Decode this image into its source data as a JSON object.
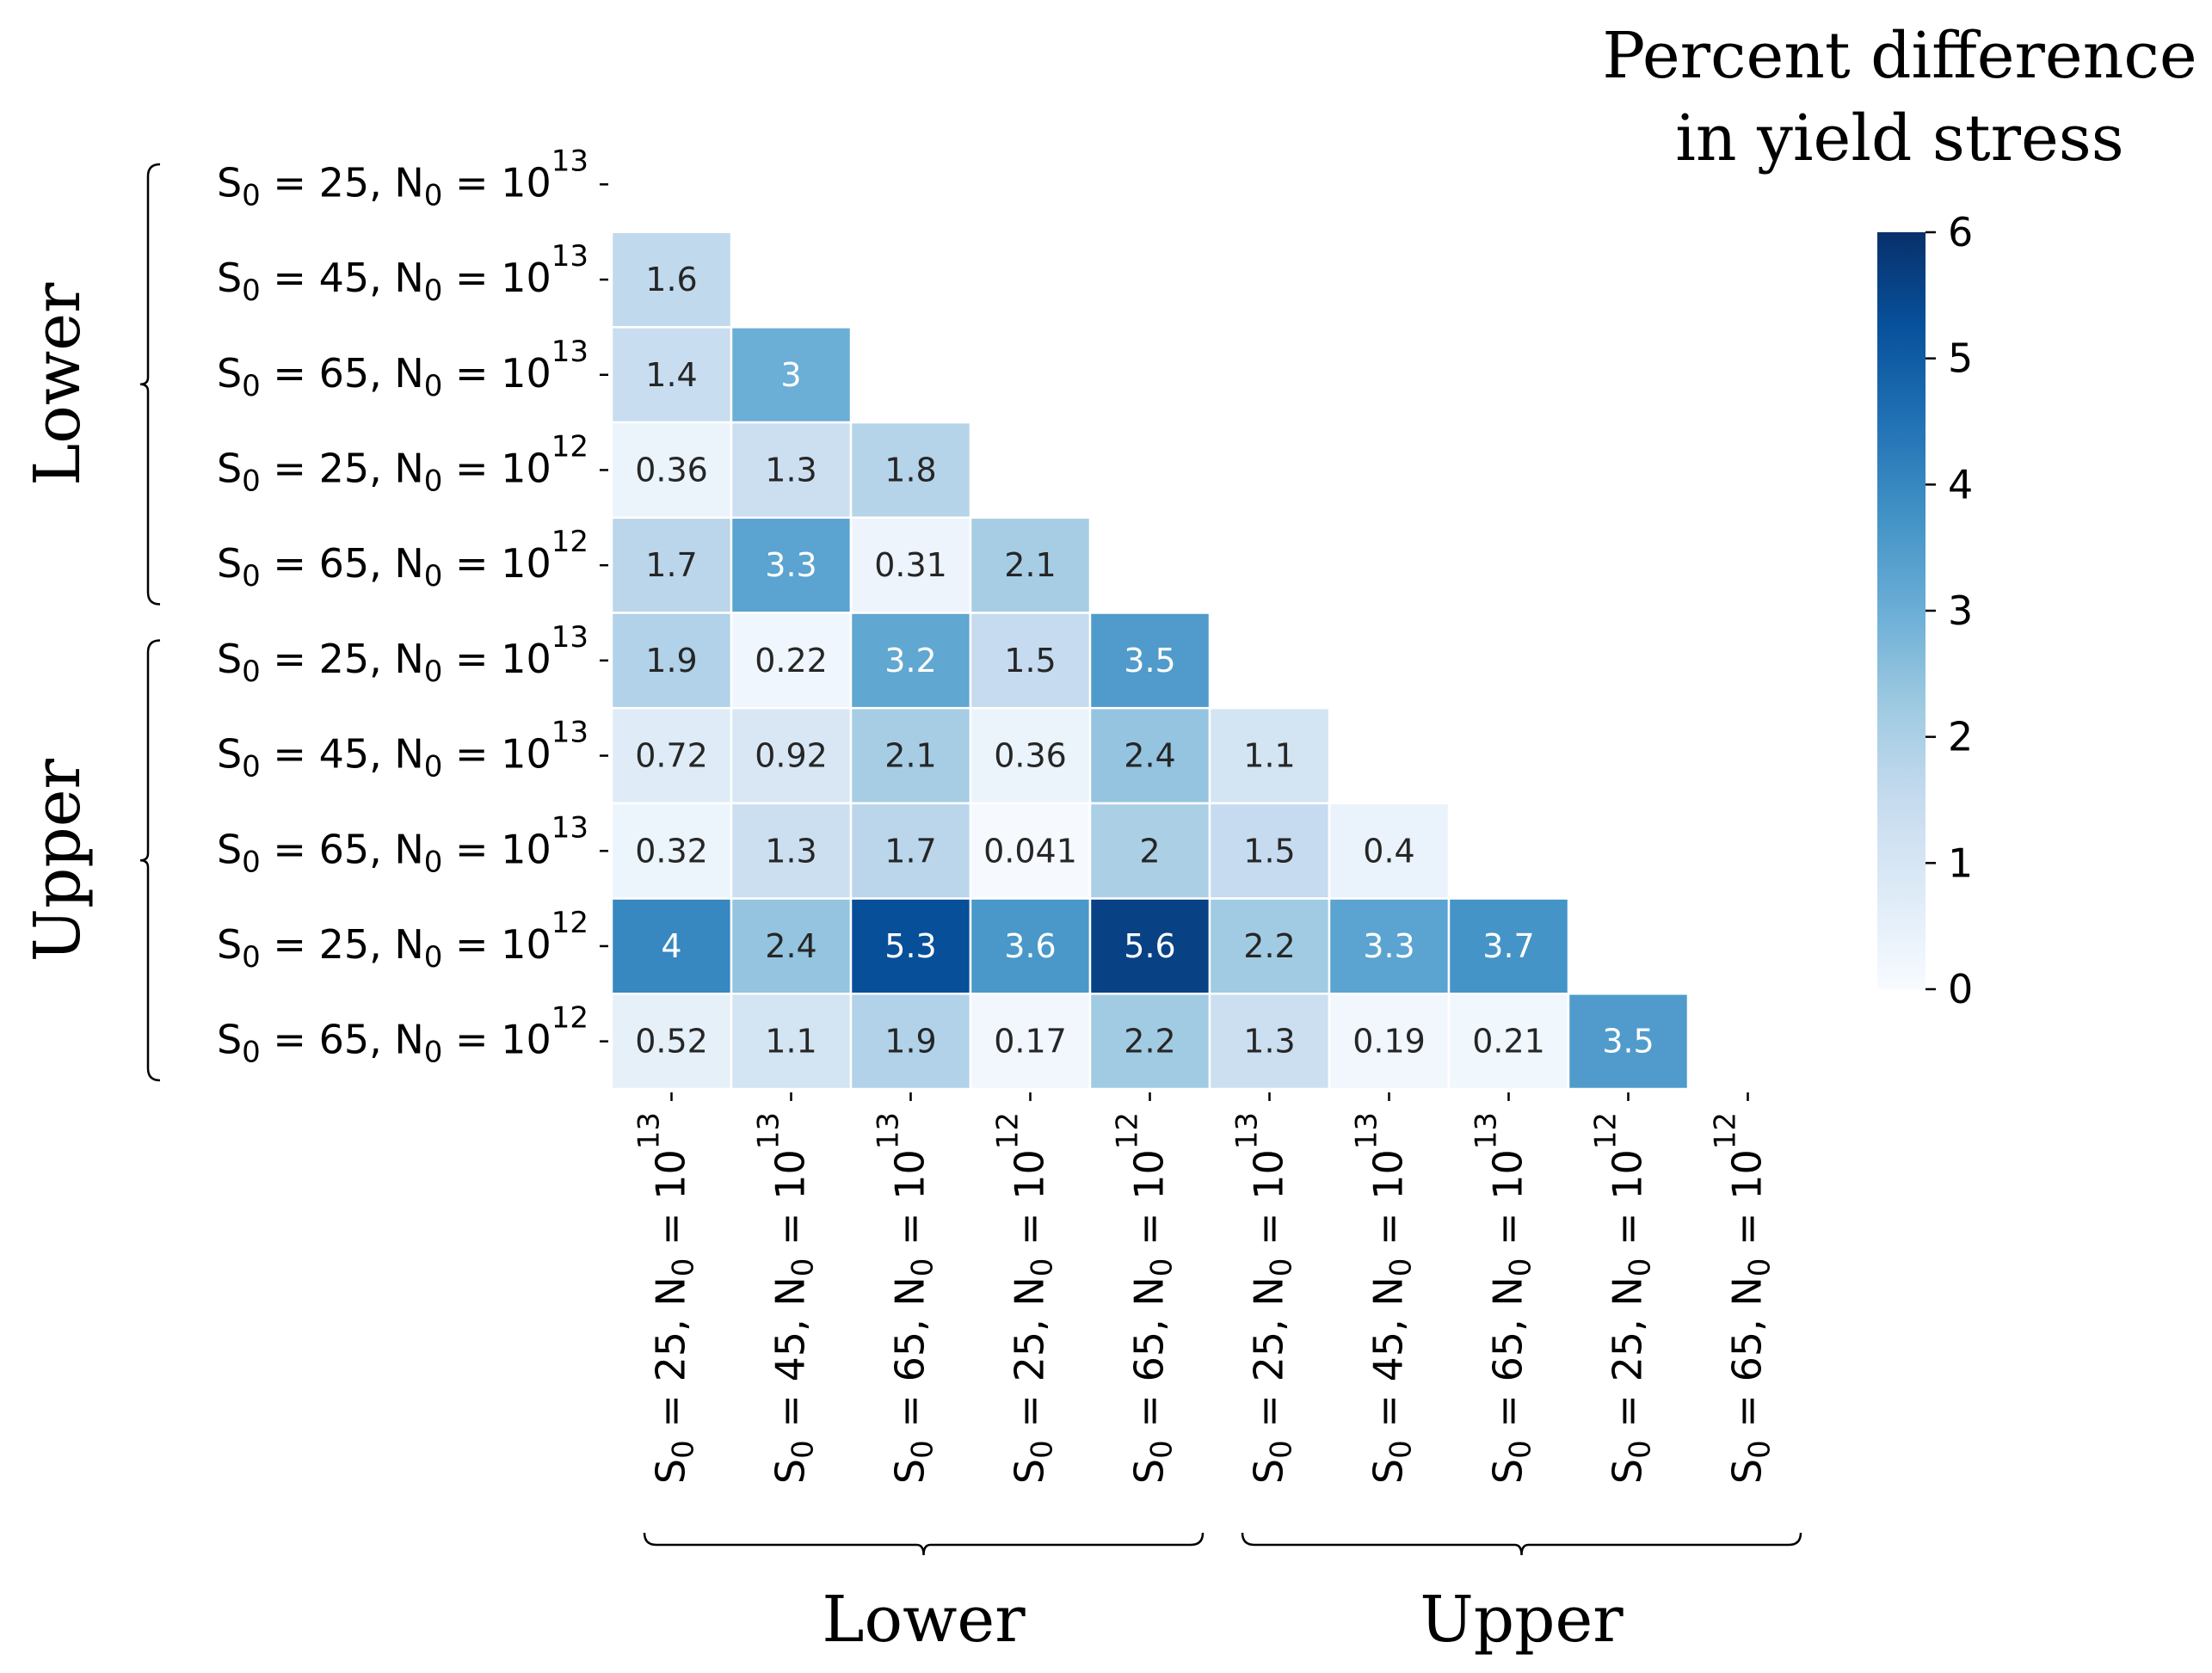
{
  "chart_data": {
    "type": "heatmap",
    "title": "Percent difference in yield stress",
    "title_lines": [
      "Percent difference",
      "in yield stress"
    ],
    "labels": [
      {
        "S": "25",
        "N": "13"
      },
      {
        "S": "45",
        "N": "13"
      },
      {
        "S": "65",
        "N": "13"
      },
      {
        "S": "25",
        "N": "12"
      },
      {
        "S": "65",
        "N": "12"
      },
      {
        "S": "25",
        "N": "13"
      },
      {
        "S": "45",
        "N": "13"
      },
      {
        "S": "65",
        "N": "13"
      },
      {
        "S": "25",
        "N": "12"
      },
      {
        "S": "65",
        "N": "12"
      }
    ],
    "groups": [
      {
        "name": "Lower",
        "start": 0,
        "end": 4
      },
      {
        "name": "Upper",
        "start": 5,
        "end": 9
      }
    ],
    "rows": [
      [],
      [
        "1.6"
      ],
      [
        "1.4",
        "3"
      ],
      [
        "0.36",
        "1.3",
        "1.8"
      ],
      [
        "1.7",
        "3.3",
        "0.31",
        "2.1"
      ],
      [
        "1.9",
        "0.22",
        "3.2",
        "1.5",
        "3.5"
      ],
      [
        "0.72",
        "0.92",
        "2.1",
        "0.36",
        "2.4",
        "1.1"
      ],
      [
        "0.32",
        "1.3",
        "1.7",
        "0.041",
        "2",
        "1.5",
        "0.4"
      ],
      [
        "4",
        "2.4",
        "5.3",
        "3.6",
        "5.6",
        "2.2",
        "3.3",
        "3.7"
      ],
      [
        "0.52",
        "1.1",
        "1.9",
        "0.17",
        "2.2",
        "1.3",
        "0.19",
        "0.21",
        "3.5"
      ]
    ],
    "colorbar": {
      "min": 0,
      "max": 6,
      "ticks": [
        "0",
        "1",
        "2",
        "3",
        "4",
        "5",
        "6"
      ],
      "colormap": "Blues"
    }
  }
}
